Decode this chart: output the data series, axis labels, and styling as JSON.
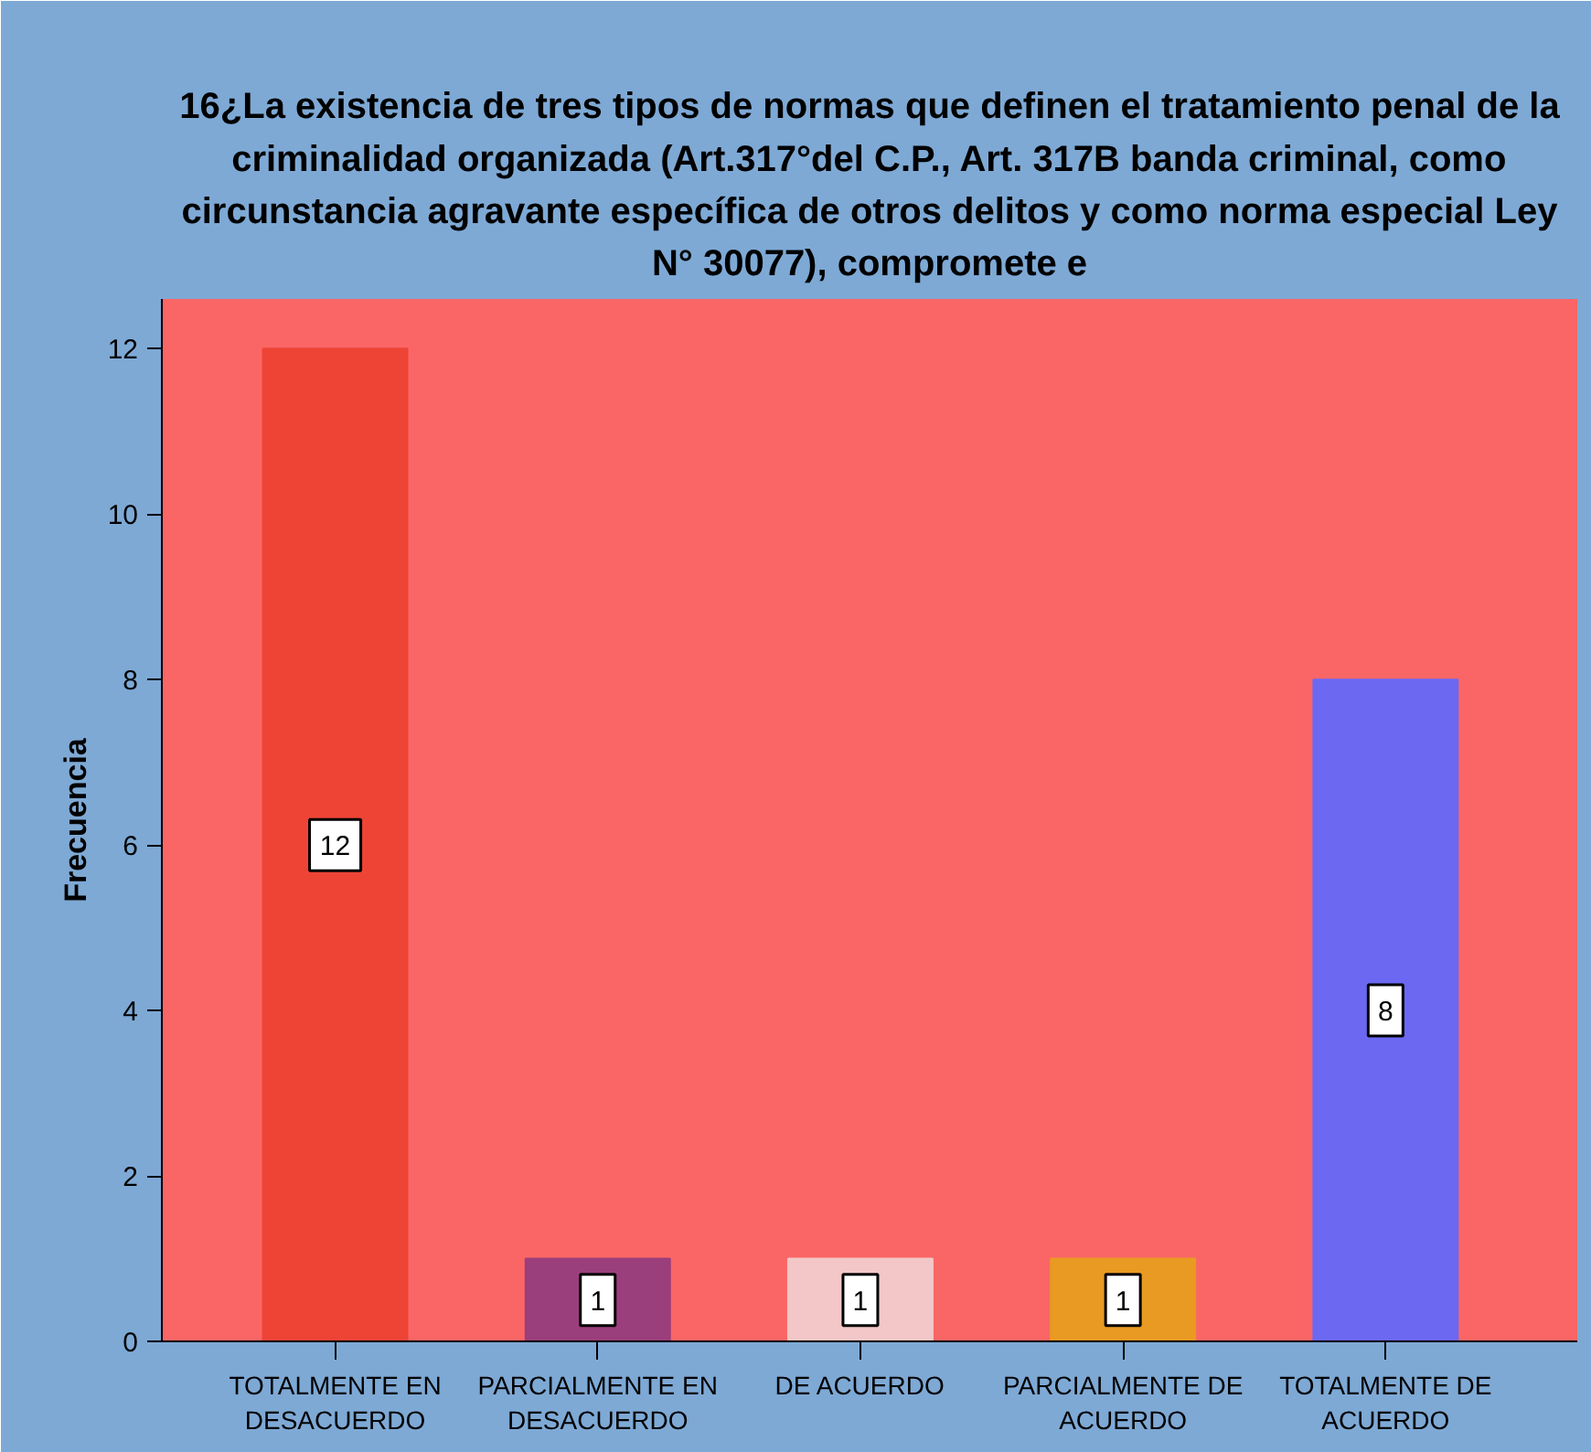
{
  "chart_data": {
    "type": "bar",
    "title": "16¿La existencia de tres tipos de normas que definen el tratamiento penal de la criminalidad organizada (Art.317°del C.P., Art. 317B banda criminal, como circunstancia agravante específica de otros delitos y como norma especial Ley N° 30077), compromete e",
    "ylabel": "Frecuencia",
    "categories": [
      "TOTALMENTE EN DESACUERDO",
      "PARCIALMENTE EN DESACUERDO",
      "DE ACUERDO",
      "PARCIALMENTE DE ACUERDO",
      "TOTALMENTE DE ACUERDO"
    ],
    "values": [
      12,
      1,
      1,
      1,
      8
    ],
    "colors": [
      "#ee4436",
      "#9b3f7c",
      "#f3c7c7",
      "#e99a22",
      "#6c68f2"
    ],
    "ylim": [
      0,
      12.6
    ],
    "yticks": [
      0,
      2,
      4,
      6,
      8,
      10,
      12
    ],
    "data_labels": true
  }
}
